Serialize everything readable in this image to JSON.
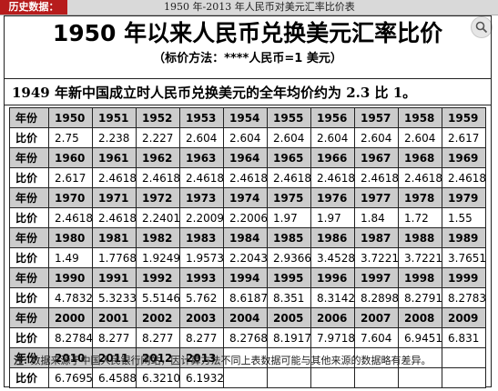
{
  "header": {
    "tag": "历史数据：",
    "title": "1950 年-2013 年人民币对美元汇率比价表"
  },
  "doc": {
    "title": "1950 年以来人民币兑换美元汇率比价",
    "subtitle": "（标价方法：****人民币=1 美元）",
    "note": "1949 年新中国成立时人民币兑换美元的全年均价约为 2.3 比 1。",
    "year_label": "年份",
    "rate_label": "比价",
    "footnote_label": "注:",
    "footnote_text": "数据来源于中国人民银行网站，因计算方法不同上表数据可能与其他来源的数据略有差异。"
  },
  "table": [
    {
      "years": [
        "1950",
        "1951",
        "1952",
        "1953",
        "1954",
        "1955",
        "1956",
        "1957",
        "1958",
        "1959"
      ],
      "rates": [
        "2.75",
        "2.238",
        "2.227",
        "2.604",
        "2.604",
        "2.604",
        "2.604",
        "2.604",
        "2.604",
        "2.617"
      ]
    },
    {
      "years": [
        "1960",
        "1961",
        "1962",
        "1963",
        "1964",
        "1965",
        "1966",
        "1967",
        "1968",
        "1969"
      ],
      "rates": [
        "2.617",
        "2.4618",
        "2.4618",
        "2.4618",
        "2.4618",
        "2.4618",
        "2.4618",
        "2.4618",
        "2.4618",
        "2.4618"
      ]
    },
    {
      "years": [
        "1970",
        "1971",
        "1972",
        "1973",
        "1974",
        "1975",
        "1976",
        "1977",
        "1978",
        "1979"
      ],
      "rates": [
        "2.4618",
        "2.4618",
        "2.2401",
        "2.2009",
        "2.2006",
        "1.97",
        "1.97",
        "1.84",
        "1.72",
        "1.55"
      ]
    },
    {
      "years": [
        "1980",
        "1981",
        "1982",
        "1983",
        "1984",
        "1985",
        "1986",
        "1987",
        "1988",
        "1989"
      ],
      "rates": [
        "1.49",
        "1.7768",
        "1.9249",
        "1.9573",
        "2.2043",
        "2.9366",
        "3.4528",
        "3.7221",
        "3.7221",
        "3.7651"
      ]
    },
    {
      "years": [
        "1990",
        "1991",
        "1992",
        "1993",
        "1994",
        "1995",
        "1996",
        "1997",
        "1998",
        "1999"
      ],
      "rates": [
        "4.7832",
        "5.3233",
        "5.5146",
        "5.762",
        "8.6187",
        "8.351",
        "8.3142",
        "8.2898",
        "8.2791",
        "8.2783"
      ]
    },
    {
      "years": [
        "2000",
        "2001",
        "2002",
        "2003",
        "2004",
        "2005",
        "2006",
        "2007",
        "2008",
        "2009"
      ],
      "rates": [
        "8.2784",
        "8.277",
        "8.277",
        "8.277",
        "8.2768",
        "8.1917",
        "7.9718",
        "7.604",
        "6.9451",
        "6.831"
      ]
    },
    {
      "years": [
        "2010",
        "2011",
        "2012",
        "2013",
        "",
        "",
        "",
        "",
        "",
        ""
      ],
      "rates": [
        "6.7695",
        "6.4588",
        "6.3210",
        "6.1932",
        "",
        "",
        "",
        "",
        "",
        ""
      ]
    }
  ]
}
